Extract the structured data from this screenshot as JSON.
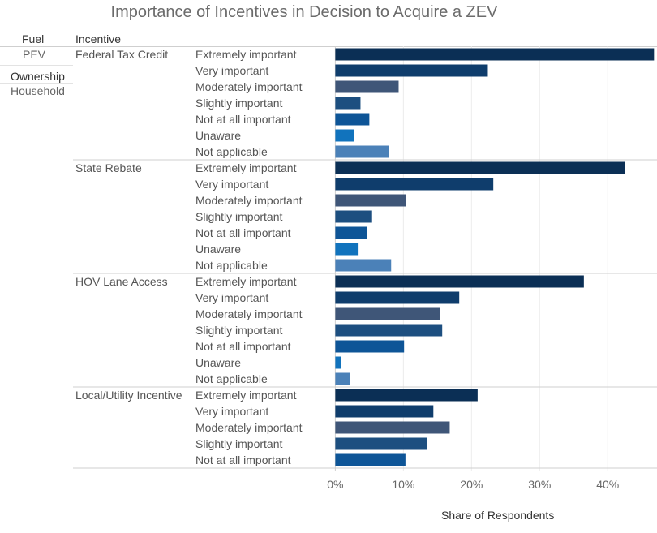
{
  "title": "Importance of Incentives in Decision to Acquire a ZEV",
  "headers": {
    "fuel": "Fuel",
    "incentive": "Incentive",
    "fuel_value": "PEV",
    "ownership": "Ownership",
    "ownership_value": "Household"
  },
  "chart_data": {
    "type": "bar",
    "orientation": "horizontal",
    "title": "Importance of Incentives in Decision to Acquire a ZEV",
    "xlabel": "Share of Respondents",
    "ylabel": "",
    "x_range": [
      -1,
      47
    ],
    "x_ticks": [
      0,
      10,
      20,
      30,
      40
    ],
    "x_tick_labels": [
      "0%",
      "10%",
      "20%",
      "30%",
      "40%"
    ],
    "grid": true,
    "colors": {
      "Extremely important": "#0b2f55",
      "Very important": "#0f3d6c",
      "Moderately important": "#3f5678",
      "Slightly important": "#1d4f80",
      "Not at all important": "#0e5597",
      "Unaware": "#1173bd",
      "Not applicable": "#4b81b8"
    },
    "groups": [
      {
        "incentive": "Federal Tax Credit",
        "categories": [
          "Extremely important",
          "Very important",
          "Moderately important",
          "Slightly important",
          "Not at all important",
          "Unaware",
          "Not applicable"
        ],
        "values": [
          46.8,
          22.4,
          9.3,
          3.7,
          5.0,
          2.8,
          7.9
        ]
      },
      {
        "incentive": "State Rebate",
        "categories": [
          "Extremely important",
          "Very important",
          "Moderately important",
          "Slightly important",
          "Not at all important",
          "Unaware",
          "Not applicable"
        ],
        "values": [
          42.5,
          23.2,
          10.4,
          5.4,
          4.6,
          3.3,
          8.2
        ]
      },
      {
        "incentive": "HOV Lane Access",
        "categories": [
          "Extremely important",
          "Very important",
          "Moderately important",
          "Slightly important",
          "Not at all important",
          "Unaware",
          "Not applicable"
        ],
        "values": [
          36.5,
          18.2,
          15.4,
          15.7,
          10.1,
          0.9,
          2.2
        ]
      },
      {
        "incentive": "Local/Utility Incentive",
        "categories": [
          "Extremely important",
          "Very important",
          "Moderately important",
          "Slightly important",
          "Not at all important"
        ],
        "values": [
          20.9,
          14.4,
          16.8,
          13.5,
          10.3
        ]
      }
    ]
  }
}
